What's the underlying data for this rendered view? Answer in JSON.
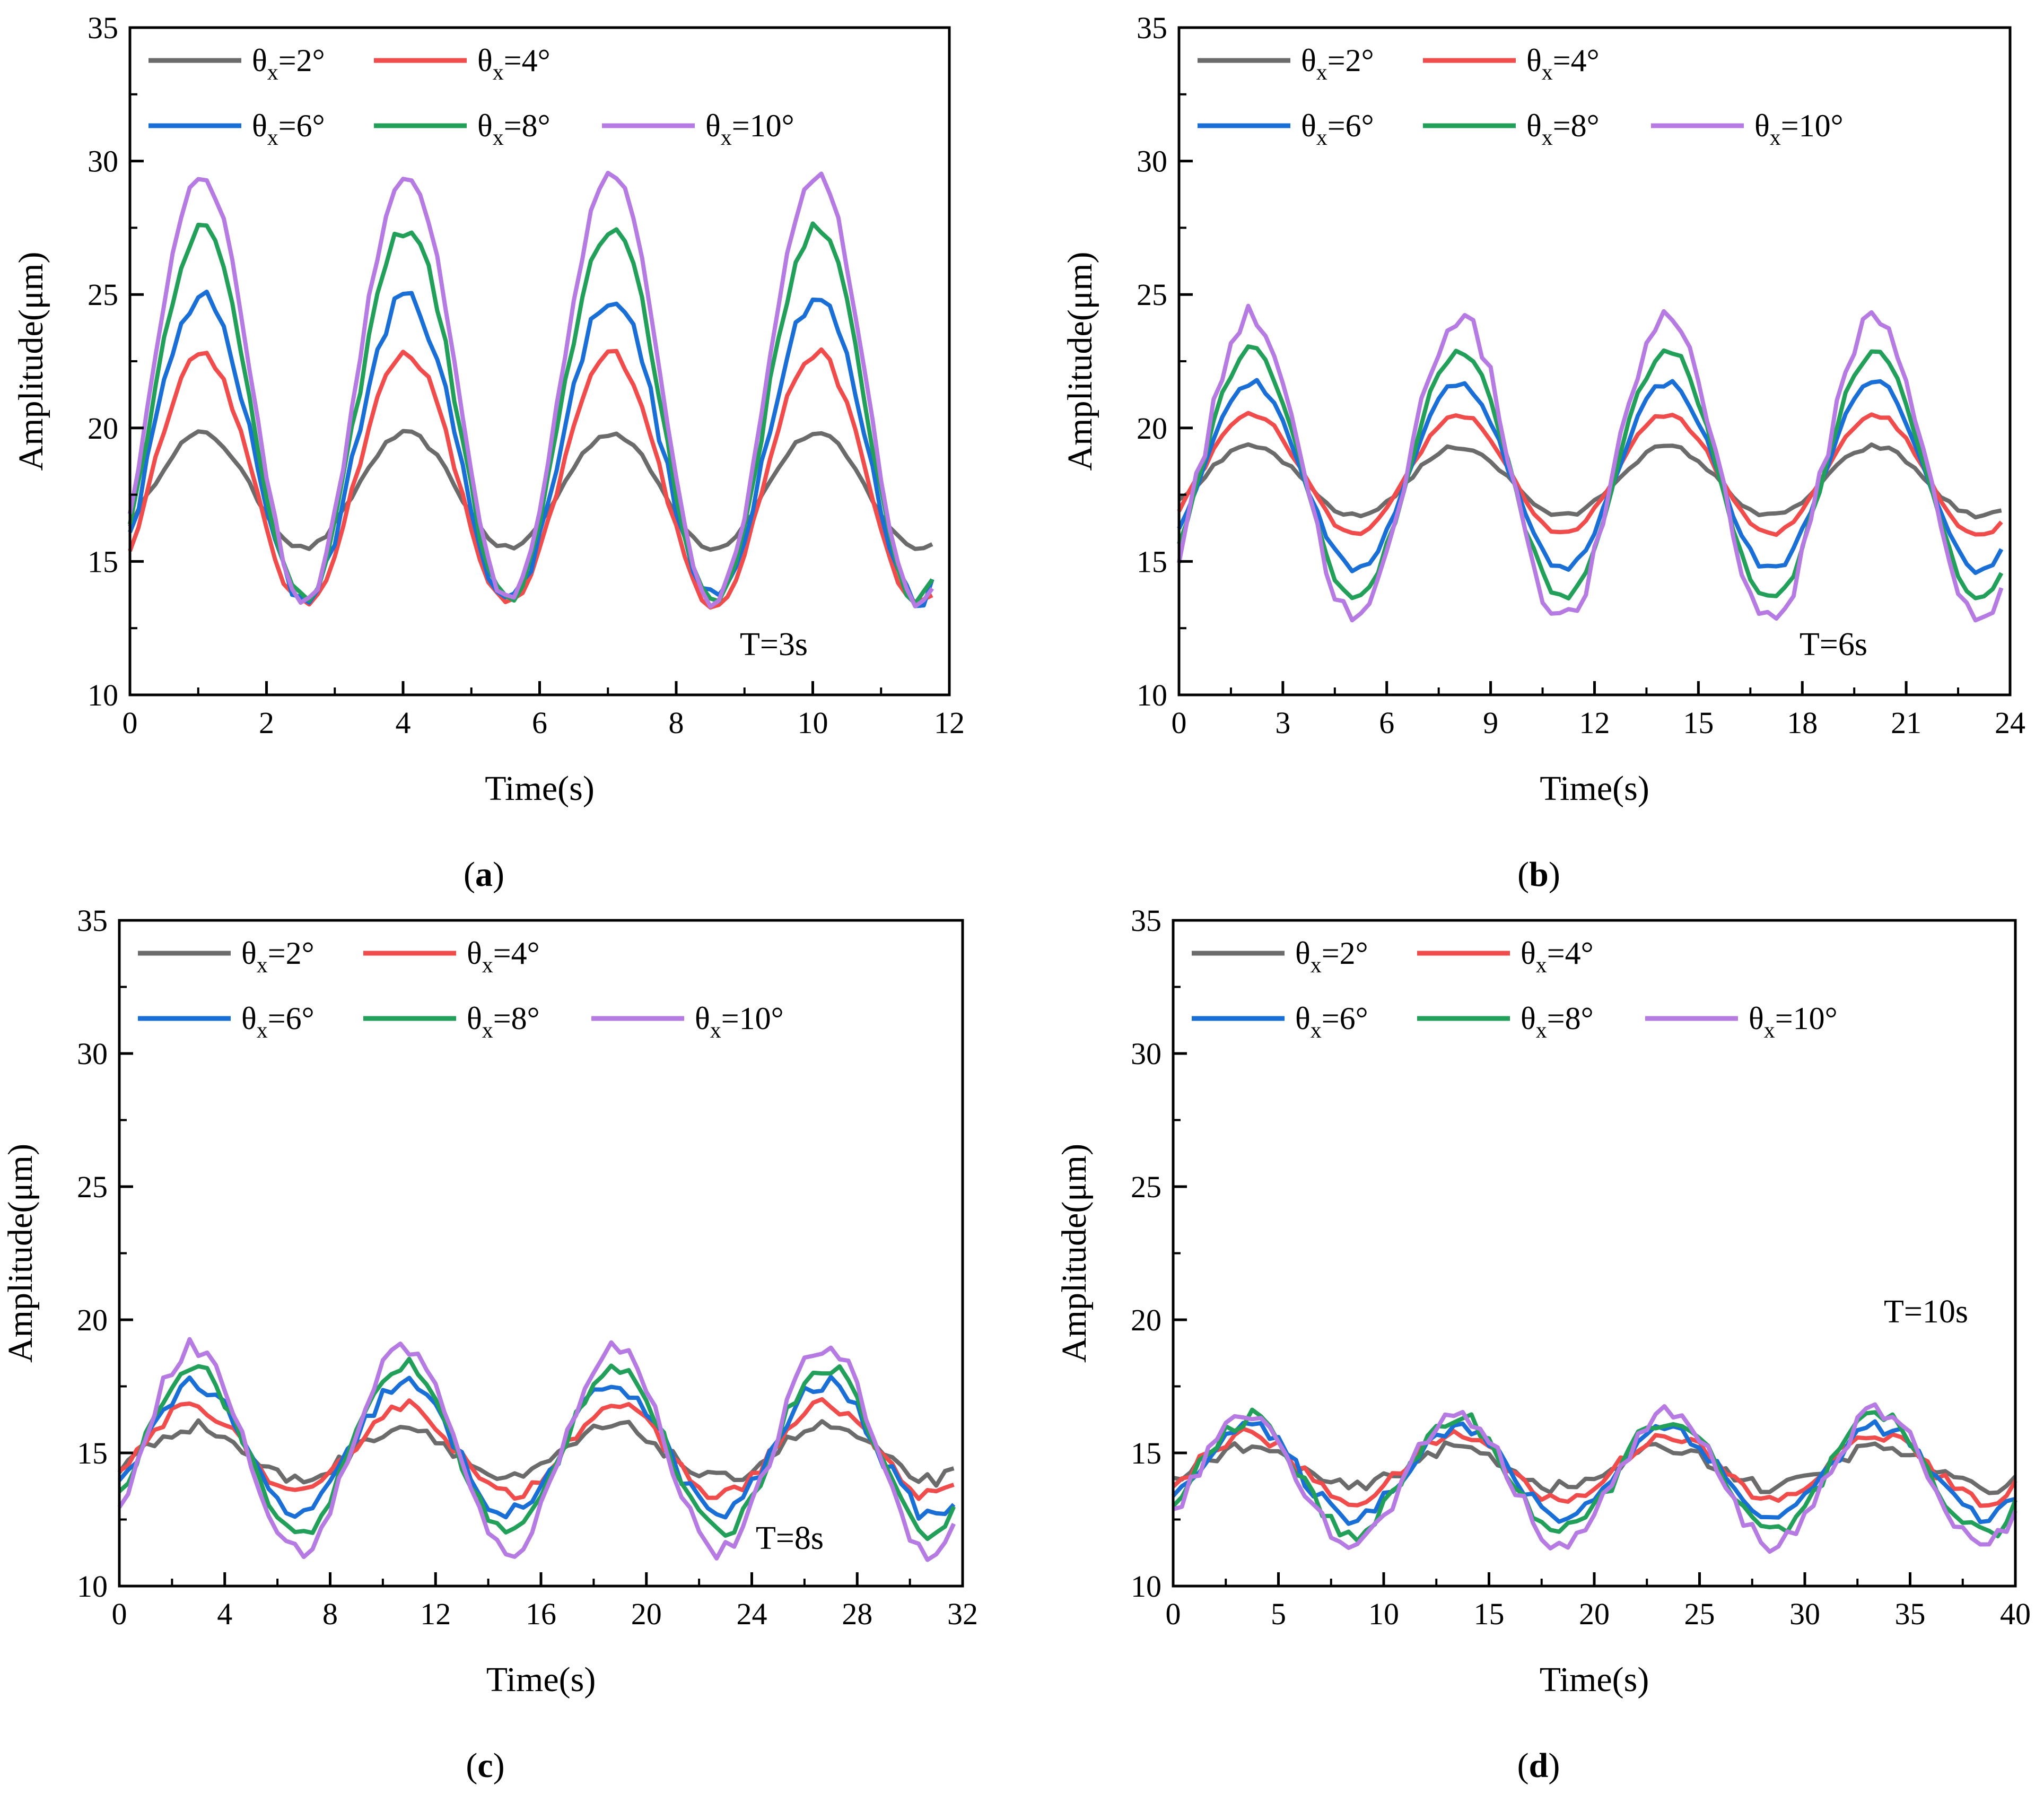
{
  "figure": {
    "legend_prefix": "θ",
    "legend_sub": "x",
    "series_names": [
      "θx=2°",
      "θx=4°",
      "θx=6°",
      "θx=8°",
      "θx=10°"
    ],
    "series_colors": [
      "#6b6b6b",
      "#f04c4c",
      "#1a6fd6",
      "#22a05a",
      "#b57be3"
    ]
  },
  "chart_data": [
    {
      "type": "line",
      "panel_label": "a",
      "annotation": "T=3s",
      "title": "",
      "xlabel": "Time(s)",
      "ylabel": "Amplitude(μm)",
      "xlim": [
        0,
        12
      ],
      "ylim": [
        10,
        35
      ],
      "xticks": [
        0,
        2,
        4,
        6,
        8,
        10,
        12
      ],
      "yticks": [
        10,
        15,
        20,
        25,
        30,
        35
      ],
      "legend_position": "top-left",
      "period": 3,
      "duration": 11.8,
      "series": [
        {
          "name": "θx=2°",
          "angle": "2",
          "color": "#6b6b6b",
          "peak": 19.8,
          "trough": 15.5,
          "noise": 0.1
        },
        {
          "name": "θx=4°",
          "angle": "4",
          "color": "#f04c4c",
          "peak": 22.8,
          "trough": 13.4,
          "noise": 0.2
        },
        {
          "name": "θx=6°",
          "angle": "6",
          "color": "#1a6fd6",
          "peak": 24.9,
          "trough": 13.6,
          "noise": 0.35
        },
        {
          "name": "θx=8°",
          "angle": "8",
          "color": "#22a05a",
          "peak": 27.5,
          "trough": 13.5,
          "noise": 0.3
        },
        {
          "name": "θx=10°",
          "angle": "10",
          "color": "#b57be3",
          "peak": 29.5,
          "trough": 13.5,
          "noise": 0.25
        }
      ]
    },
    {
      "type": "line",
      "panel_label": "b",
      "annotation": "T=6s",
      "title": "",
      "xlabel": "Time(s)",
      "ylabel": "Amplitude(μm)",
      "xlim": [
        0,
        24
      ],
      "ylim": [
        10,
        35
      ],
      "xticks": [
        0,
        3,
        6,
        9,
        12,
        15,
        18,
        21,
        24
      ],
      "yticks": [
        10,
        15,
        20,
        25,
        30,
        35
      ],
      "legend_position": "top-left",
      "period": 6,
      "duration": 23.8,
      "series": [
        {
          "name": "θx=2°",
          "angle": "2",
          "color": "#6b6b6b",
          "peak": 19.3,
          "trough": 16.7,
          "noise": 0.1
        },
        {
          "name": "θx=4°",
          "angle": "4",
          "color": "#f04c4c",
          "peak": 20.5,
          "trough": 16.0,
          "noise": 0.1
        },
        {
          "name": "θx=6°",
          "angle": "6",
          "color": "#1a6fd6",
          "peak": 21.7,
          "trough": 14.7,
          "noise": 0.15
        },
        {
          "name": "θx=8°",
          "angle": "8",
          "color": "#22a05a",
          "peak": 22.9,
          "trough": 13.6,
          "noise": 0.2
        },
        {
          "name": "θx=10°",
          "angle": "10",
          "color": "#b57be3",
          "peak": 24.2,
          "trough": 12.8,
          "noise": 0.45
        }
      ]
    },
    {
      "type": "line",
      "panel_label": "c",
      "annotation": "T=8s",
      "title": "",
      "xlabel": "Time(s)",
      "ylabel": "Amplitude(μm)",
      "xlim": [
        0,
        32
      ],
      "ylim": [
        10,
        35
      ],
      "xticks": [
        0,
        4,
        8,
        12,
        16,
        20,
        24,
        28,
        32
      ],
      "yticks": [
        10,
        15,
        20,
        25,
        30,
        35
      ],
      "legend_position": "top-left",
      "period": 8,
      "duration": 31.8,
      "series": [
        {
          "name": "θx=2°",
          "angle": "2",
          "color": "#6b6b6b",
          "peak": 16.0,
          "trough": 14.0,
          "noise": 0.25
        },
        {
          "name": "θx=4°",
          "angle": "4",
          "color": "#f04c4c",
          "peak": 16.8,
          "trough": 13.4,
          "noise": 0.25
        },
        {
          "name": "θx=6°",
          "angle": "6",
          "color": "#1a6fd6",
          "peak": 17.6,
          "trough": 12.7,
          "noise": 0.35
        },
        {
          "name": "θx=8°",
          "angle": "8",
          "color": "#22a05a",
          "peak": 18.3,
          "trough": 12.0,
          "noise": 0.3
        },
        {
          "name": "θx=10°",
          "angle": "10",
          "color": "#b57be3",
          "peak": 19.0,
          "trough": 11.3,
          "noise": 0.35
        }
      ]
    },
    {
      "type": "line",
      "panel_label": "d",
      "annotation": "T=10s",
      "title": "",
      "xlabel": "Time(s)",
      "ylabel": "Amplitude(μm)",
      "xlim": [
        0,
        40
      ],
      "ylim": [
        10,
        35
      ],
      "xticks": [
        0,
        5,
        10,
        15,
        20,
        25,
        30,
        35,
        40
      ],
      "yticks": [
        10,
        15,
        20,
        25,
        30,
        35
      ],
      "legend_position": "top-left",
      "period": 10,
      "duration": 40,
      "series": [
        {
          "name": "θx=2°",
          "angle": "2",
          "color": "#6b6b6b",
          "peak": 15.2,
          "trough": 13.7,
          "noise": 0.25
        },
        {
          "name": "θx=4°",
          "angle": "4",
          "color": "#f04c4c",
          "peak": 15.7,
          "trough": 13.2,
          "noise": 0.25
        },
        {
          "name": "θx=6°",
          "angle": "6",
          "color": "#1a6fd6",
          "peak": 16.0,
          "trough": 12.6,
          "noise": 0.3
        },
        {
          "name": "θx=8°",
          "angle": "8",
          "color": "#22a05a",
          "peak": 16.3,
          "trough": 12.0,
          "noise": 0.35
        },
        {
          "name": "θx=10°",
          "angle": "10",
          "color": "#b57be3",
          "peak": 16.5,
          "trough": 11.6,
          "noise": 0.35
        }
      ]
    }
  ]
}
